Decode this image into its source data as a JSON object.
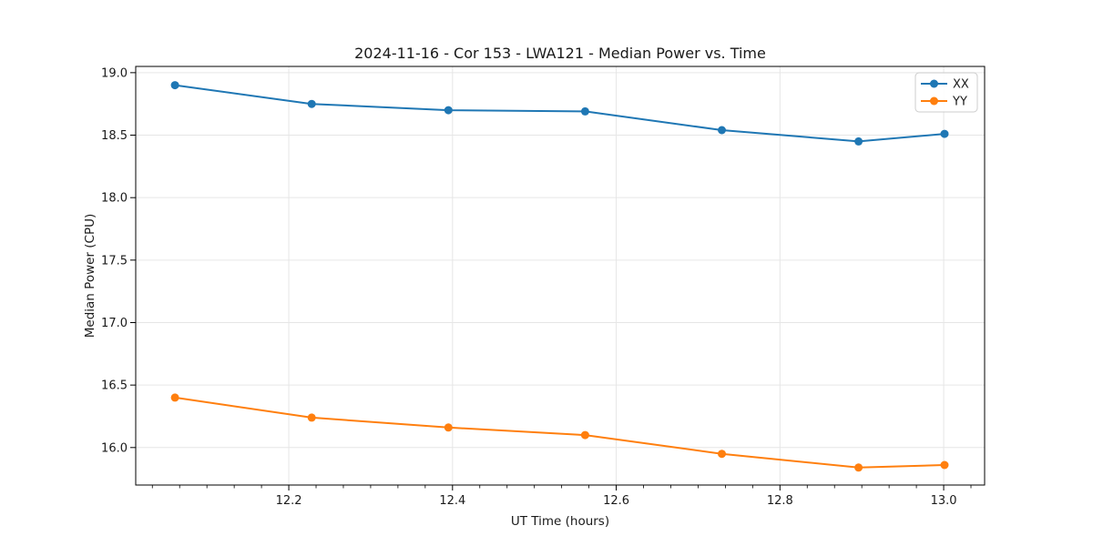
{
  "page": {
    "background": "#ffffff"
  },
  "chart_data": {
    "type": "line",
    "title": "2024-11-16 - Cor 153 - LWA121 - Median Power vs. Time",
    "xlabel": "UT Time (hours)",
    "ylabel": "Median Power (CPU)",
    "xlim": [
      12.013,
      13.05
    ],
    "ylim": [
      15.7,
      19.05
    ],
    "x_major_ticks": [
      12.2,
      12.4,
      12.6,
      12.8,
      13.0
    ],
    "x_minor_tick_step": 0.0333333,
    "y_ticks": [
      16.0,
      16.5,
      17.0,
      17.5,
      18.0,
      18.5,
      19.0
    ],
    "grid": true,
    "grid_color": "#e6e6e6",
    "spine_color": "#000000",
    "legend_position": "upper right",
    "x": [
      12.061,
      12.228,
      12.395,
      12.562,
      12.729,
      12.896,
      13.001
    ],
    "series": [
      {
        "name": "XX",
        "color": "#1f77b4",
        "values": [
          18.9,
          18.75,
          18.7,
          18.69,
          18.54,
          18.45,
          18.51
        ]
      },
      {
        "name": "YY",
        "color": "#ff7f0e",
        "values": [
          16.4,
          16.24,
          16.16,
          16.1,
          15.95,
          15.84,
          15.86
        ]
      }
    ]
  }
}
